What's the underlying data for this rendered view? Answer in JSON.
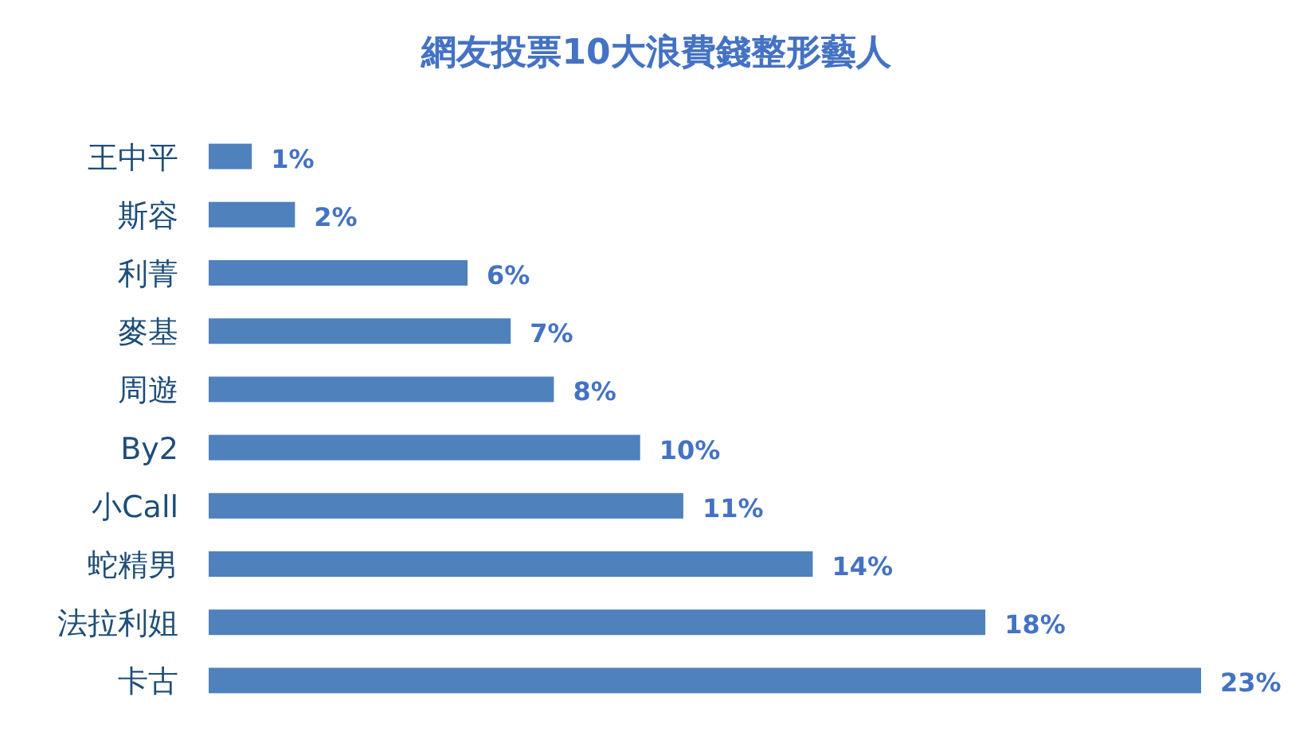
{
  "chart_data": {
    "type": "bar",
    "orientation": "horizontal",
    "title": "網友投票10大浪費錢整形藝人",
    "categories": [
      "王中平",
      "斯容",
      "利菁",
      "麥基",
      "周遊",
      "By2",
      "小Call",
      "蛇精男",
      "法拉利姐",
      "卡古"
    ],
    "values": [
      1,
      2,
      6,
      7,
      8,
      10,
      11,
      14,
      18,
      23
    ],
    "value_labels": [
      "1%",
      "2%",
      "6%",
      "7%",
      "8%",
      "10%",
      "11%",
      "14%",
      "18%",
      "23%"
    ],
    "color": "#4f81bd"
  }
}
